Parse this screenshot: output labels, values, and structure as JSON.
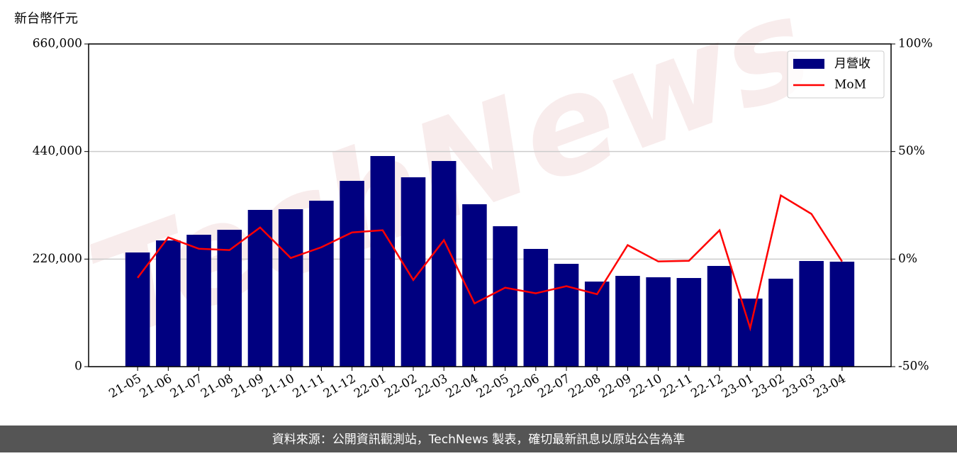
{
  "chart_data": {
    "type": "bar_line",
    "y_label": "新台幣仟元",
    "watermark": "TechNews",
    "footer": "資料來源：公開資訊觀測站，TechNews 製表，確切最新訊息以原站公告為準",
    "categories": [
      "21-05",
      "21-06",
      "21-07",
      "21-08",
      "21-09",
      "21-10",
      "21-11",
      "21-12",
      "22-01",
      "22-02",
      "22-03",
      "22-04",
      "22-05",
      "22-06",
      "22-07",
      "22-08",
      "22-09",
      "22-10",
      "22-11",
      "22-12",
      "23-01",
      "23-02",
      "23-03",
      "23-04"
    ],
    "series": [
      {
        "name": "月營收",
        "color": "#000080",
        "type": "bar",
        "values": [
          233500,
          258200,
          269800,
          279900,
          320600,
          322000,
          339400,
          380000,
          430800,
          387300,
          420600,
          332200,
          287200,
          240800,
          210300,
          174000,
          185700,
          182800,
          181300,
          206000,
          139200,
          179900,
          216100,
          214700
        ]
      },
      {
        "name": "MoM",
        "color": "#ff0000",
        "type": "line",
        "axis": "y2",
        "values": [
          -8.7,
          10.1,
          4.8,
          4.2,
          14.7,
          0.5,
          5.5,
          12.4,
          13.4,
          -9.7,
          8.8,
          -20.6,
          -13.3,
          -15.9,
          -12.6,
          -16.3,
          6.5,
          -1.1,
          -0.8,
          13.4,
          -32.1,
          29.6,
          21.0,
          -1.1
        ]
      }
    ],
    "ylim": [
      0,
      660000
    ],
    "yticks": [
      0,
      {
        "value": 220000,
        "label": "220,000"
      },
      {
        "value": 440000,
        "label": "440,000"
      },
      {
        "value": 660000,
        "label": "660,000"
      }
    ],
    "y2lim": [
      -50,
      100
    ],
    "y2ticks": [
      {
        "value": -50,
        "label": "-50%"
      },
      {
        "value": 0,
        "label": "0%"
      },
      {
        "value": 50,
        "label": "50%"
      },
      {
        "value": 100,
        "label": "100%"
      }
    ],
    "grid": true,
    "legend": "upper right"
  }
}
